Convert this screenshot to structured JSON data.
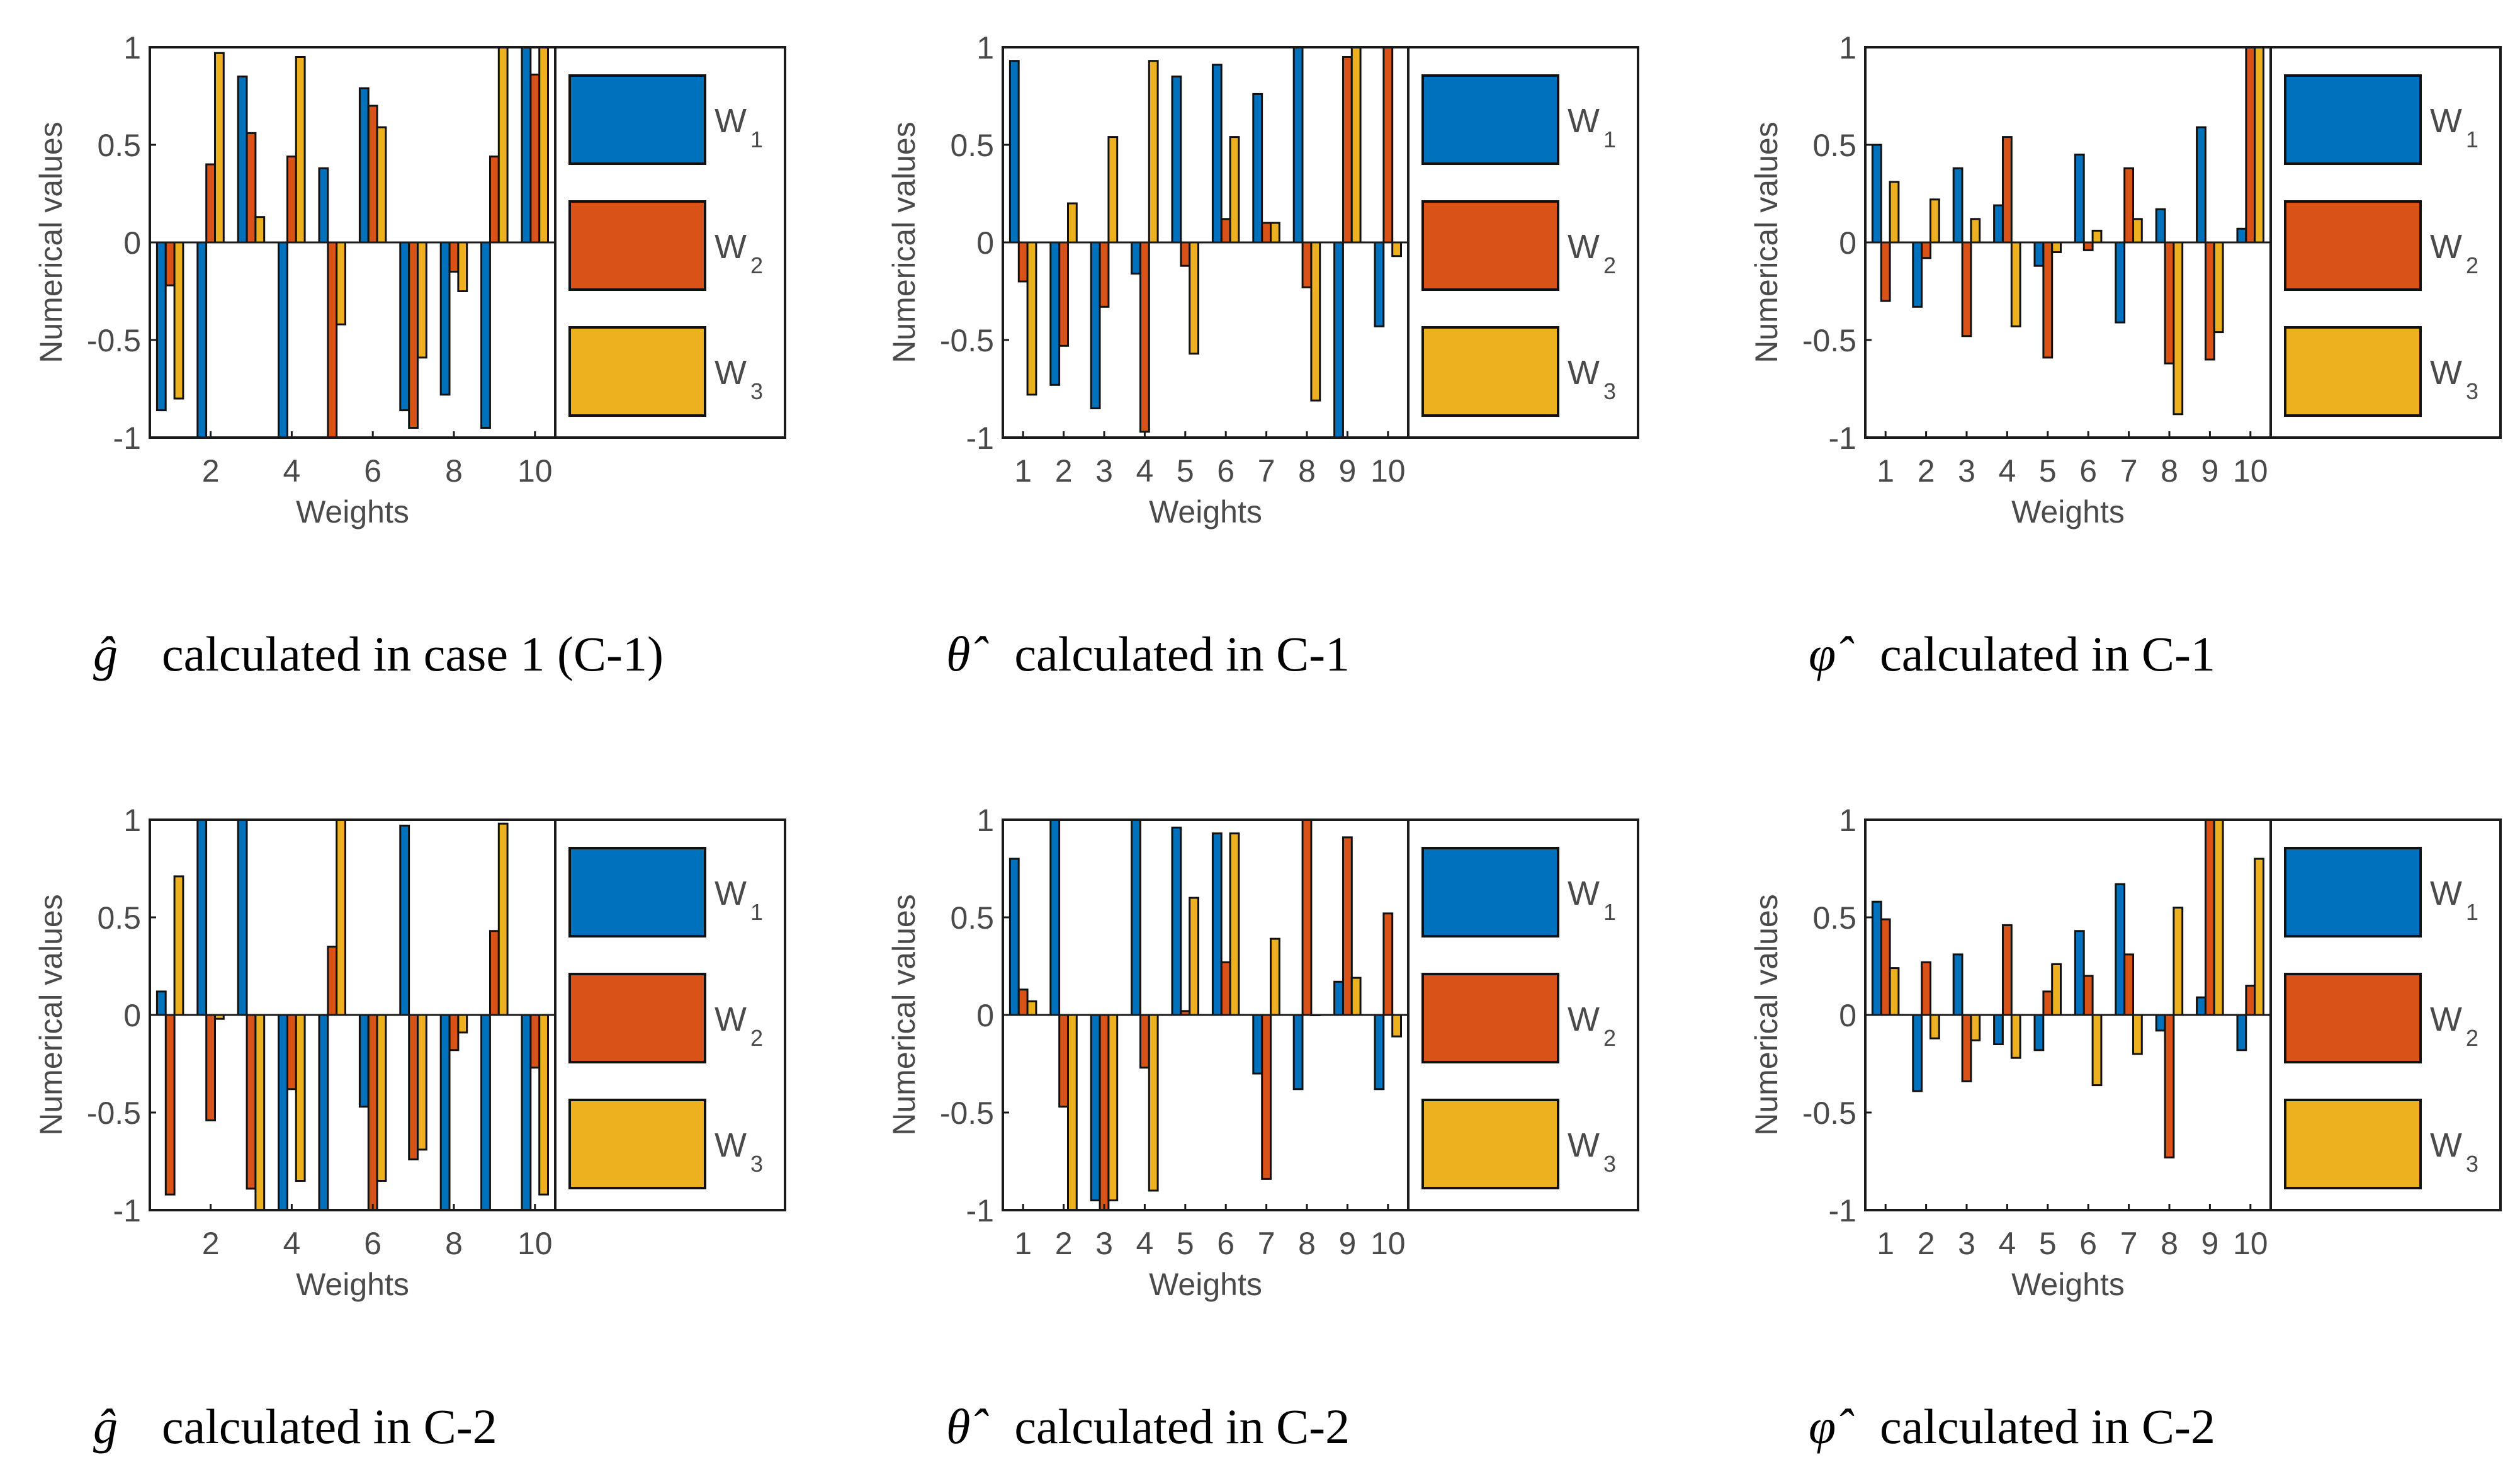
{
  "figure": {
    "colors": {
      "W1": "#0072BD",
      "W2": "#D95319",
      "W3": "#EDB120",
      "frame": "#1a1a1a",
      "text": "#4a4a4a"
    }
  },
  "chart_data": [
    {
      "type": "bar",
      "panel": "top-left",
      "caption": {
        "symbol": "ĝ",
        "text": "calculated in case 1 (C-1)"
      },
      "xlabel": "Weights",
      "ylabel": "Numerical values",
      "ylim": [
        -1,
        1
      ],
      "yticks": [
        -1,
        -0.5,
        0,
        0.5,
        1
      ],
      "xtick_labels": [
        "2",
        "4",
        "6",
        "8",
        "10"
      ],
      "categories": [
        1,
        2,
        3,
        4,
        5,
        6,
        7,
        8,
        9,
        10
      ],
      "legend": [
        "W1",
        "W2",
        "W3"
      ],
      "series": [
        {
          "name": "W1",
          "values": [
            -0.86,
            -1.0,
            0.85,
            -1.0,
            0.38,
            0.79,
            -0.86,
            -0.78,
            -0.95,
            1.0
          ]
        },
        {
          "name": "W2",
          "values": [
            -0.22,
            0.4,
            0.56,
            0.44,
            -1.0,
            0.7,
            -0.95,
            -0.15,
            0.44,
            0.86
          ]
        },
        {
          "name": "W3",
          "values": [
            -0.8,
            0.97,
            0.13,
            0.95,
            -0.42,
            0.59,
            -0.59,
            -0.25,
            1.0,
            1.0
          ]
        }
      ]
    },
    {
      "type": "bar",
      "panel": "top-middle",
      "caption": {
        "symbol": "θ̂",
        "text": "calculated in C-1"
      },
      "xlabel": "Weights",
      "ylabel": "Numerical values",
      "ylim": [
        -1,
        1
      ],
      "yticks": [
        -1,
        -0.5,
        0,
        0.5,
        1
      ],
      "xtick_labels": [
        "1",
        "2",
        "3",
        "4",
        "5",
        "6",
        "7",
        "8",
        "9",
        "10"
      ],
      "categories": [
        1,
        2,
        3,
        4,
        5,
        6,
        7,
        8,
        9,
        10
      ],
      "legend": [
        "W1",
        "W2",
        "W3"
      ],
      "series": [
        {
          "name": "W1",
          "values": [
            0.93,
            -0.73,
            -0.85,
            -0.16,
            0.85,
            0.91,
            0.76,
            1.0,
            -1.0,
            -0.43
          ]
        },
        {
          "name": "W2",
          "values": [
            -0.2,
            -0.53,
            -0.33,
            -0.97,
            -0.12,
            0.12,
            0.1,
            -0.23,
            0.95,
            1.0
          ]
        },
        {
          "name": "W3",
          "values": [
            -0.78,
            0.2,
            0.54,
            0.93,
            -0.57,
            0.54,
            0.1,
            -0.81,
            1.0,
            -0.07
          ]
        }
      ]
    },
    {
      "type": "bar",
      "panel": "top-right",
      "caption": {
        "symbol": "φ̂",
        "text": "calculated in C-1"
      },
      "xlabel": "Weights",
      "ylabel": "Numerical values",
      "ylim": [
        -1,
        1
      ],
      "yticks": [
        -1,
        -0.5,
        0,
        0.5,
        1
      ],
      "xtick_labels": [
        "1",
        "2",
        "3",
        "4",
        "5",
        "6",
        "7",
        "8",
        "9",
        "10"
      ],
      "categories": [
        1,
        2,
        3,
        4,
        5,
        6,
        7,
        8,
        9,
        10
      ],
      "legend": [
        "W1",
        "W2",
        "W3"
      ],
      "series": [
        {
          "name": "W1",
          "values": [
            0.5,
            -0.33,
            0.38,
            0.19,
            -0.12,
            0.45,
            -0.41,
            0.17,
            0.59,
            0.07
          ]
        },
        {
          "name": "W2",
          "values": [
            -0.3,
            -0.08,
            -0.48,
            0.54,
            -0.59,
            -0.04,
            0.38,
            -0.62,
            -0.6,
            1.0
          ]
        },
        {
          "name": "W3",
          "values": [
            0.31,
            0.22,
            0.12,
            -0.43,
            -0.05,
            0.06,
            0.12,
            -0.88,
            -0.46,
            1.0
          ]
        }
      ]
    },
    {
      "type": "bar",
      "panel": "bottom-left",
      "caption": {
        "symbol": "ĝ",
        "text": "calculated in C-2"
      },
      "xlabel": "Weights",
      "ylabel": "Numerical values",
      "ylim": [
        -1,
        1
      ],
      "yticks": [
        -1,
        -0.5,
        0,
        0.5,
        1
      ],
      "xtick_labels": [
        "2",
        "4",
        "6",
        "8",
        "10"
      ],
      "categories": [
        1,
        2,
        3,
        4,
        5,
        6,
        7,
        8,
        9,
        10
      ],
      "legend": [
        "W1",
        "W2",
        "W3"
      ],
      "series": [
        {
          "name": "W1",
          "values": [
            0.12,
            1.0,
            1.0,
            -1.0,
            -1.0,
            -0.47,
            0.97,
            -1.0,
            -1.0,
            -1.0
          ]
        },
        {
          "name": "W2",
          "values": [
            -0.92,
            -0.54,
            -0.89,
            -0.38,
            0.35,
            -1.0,
            -0.74,
            -0.18,
            0.43,
            -0.27
          ]
        },
        {
          "name": "W3",
          "values": [
            0.71,
            -0.02,
            -1.0,
            -0.85,
            1.0,
            -0.85,
            -0.69,
            -0.09,
            0.98,
            -0.92
          ]
        }
      ]
    },
    {
      "type": "bar",
      "panel": "bottom-middle",
      "caption": {
        "symbol": "θ̂",
        "text": "calculated in C-2"
      },
      "xlabel": "Weights",
      "ylabel": "Numerical values",
      "ylim": [
        -1,
        1
      ],
      "yticks": [
        -1,
        -0.5,
        0,
        0.5,
        1
      ],
      "xtick_labels": [
        "1",
        "2",
        "3",
        "4",
        "5",
        "6",
        "7",
        "8",
        "9",
        "10"
      ],
      "categories": [
        1,
        2,
        3,
        4,
        5,
        6,
        7,
        8,
        9,
        10
      ],
      "legend": [
        "W1",
        "W2",
        "W3"
      ],
      "series": [
        {
          "name": "W1",
          "values": [
            0.8,
            1.0,
            -0.95,
            1.0,
            0.96,
            0.93,
            -0.3,
            -0.38,
            0.17,
            -0.38
          ]
        },
        {
          "name": "W2",
          "values": [
            0.13,
            -0.47,
            -1.0,
            -0.27,
            0.02,
            0.27,
            -0.84,
            1.0,
            0.91,
            0.52
          ]
        },
        {
          "name": "W3",
          "values": [
            0.07,
            -1.0,
            -0.95,
            -0.9,
            0.6,
            0.93,
            0.39,
            0.0,
            0.19,
            -0.11
          ]
        }
      ]
    },
    {
      "type": "bar",
      "panel": "bottom-right",
      "caption": {
        "symbol": "φ̂",
        "text": "calculated in C-2"
      },
      "xlabel": "Weights",
      "ylabel": "Numerical values",
      "ylim": [
        -1,
        1
      ],
      "yticks": [
        -1,
        -0.5,
        0,
        0.5,
        1
      ],
      "xtick_labels": [
        "1",
        "2",
        "3",
        "4",
        "5",
        "6",
        "7",
        "8",
        "9",
        "10"
      ],
      "categories": [
        1,
        2,
        3,
        4,
        5,
        6,
        7,
        8,
        9,
        10
      ],
      "legend": [
        "W1",
        "W2",
        "W3"
      ],
      "series": [
        {
          "name": "W1",
          "values": [
            0.58,
            -0.39,
            0.31,
            -0.15,
            -0.18,
            0.43,
            0.67,
            -0.08,
            0.09,
            -0.18
          ]
        },
        {
          "name": "W2",
          "values": [
            0.49,
            0.27,
            -0.34,
            0.46,
            0.12,
            0.2,
            0.31,
            -0.73,
            1.0,
            0.15
          ]
        },
        {
          "name": "W3",
          "values": [
            0.24,
            -0.12,
            -0.13,
            -0.22,
            0.26,
            -0.36,
            -0.2,
            0.55,
            1.0,
            0.8
          ]
        }
      ]
    }
  ]
}
